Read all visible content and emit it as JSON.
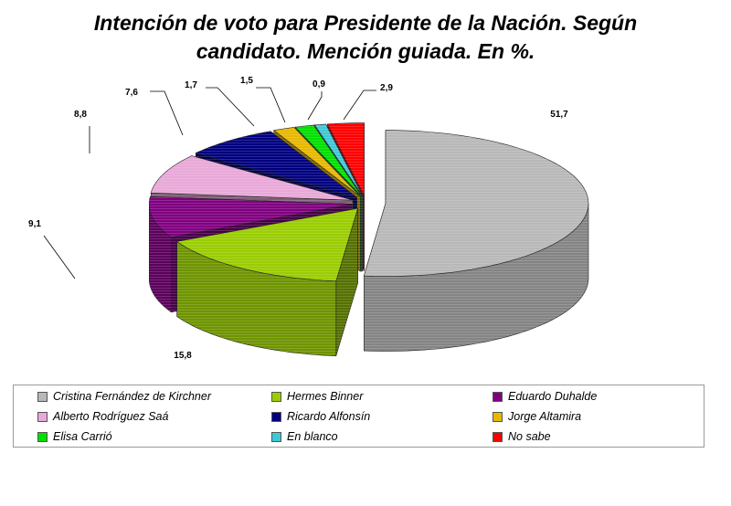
{
  "chart_data": {
    "type": "pie",
    "title_lines": [
      "Intención de voto para Presidente de la Nación. Según",
      "candidato.  Mención guiada. En %."
    ],
    "slices": [
      {
        "name": "Cristina Fernández de Kirchner",
        "value": 51.7,
        "label": "51,7",
        "color": "#b8b8b8"
      },
      {
        "name": "Hermes Binner",
        "value": 15.8,
        "label": "15,8",
        "color": "#9acd00"
      },
      {
        "name": "Eduardo Duhalde",
        "value": 9.1,
        "label": "9,1",
        "color": "#800080"
      },
      {
        "name": "Alberto Rodríguez Saá",
        "value": 8.8,
        "label": "8,8",
        "color": "#e8a8d8"
      },
      {
        "name": "Ricardo Alfonsín",
        "value": 7.6,
        "label": "7,6",
        "color": "#000080"
      },
      {
        "name": "Jorge Altamira",
        "value": 1.7,
        "label": "1,7",
        "color": "#e8b800"
      },
      {
        "name": "Elisa Carrió",
        "value": 1.5,
        "label": "1,5",
        "color": "#00e000"
      },
      {
        "name": "En blanco",
        "value": 0.9,
        "label": "0,9",
        "color": "#40c8d8"
      },
      {
        "name": "No sabe",
        "value": 2.9,
        "label": "2,9",
        "color": "#ff0000"
      }
    ],
    "style": "3d-exploded",
    "legend_position": "bottom"
  }
}
